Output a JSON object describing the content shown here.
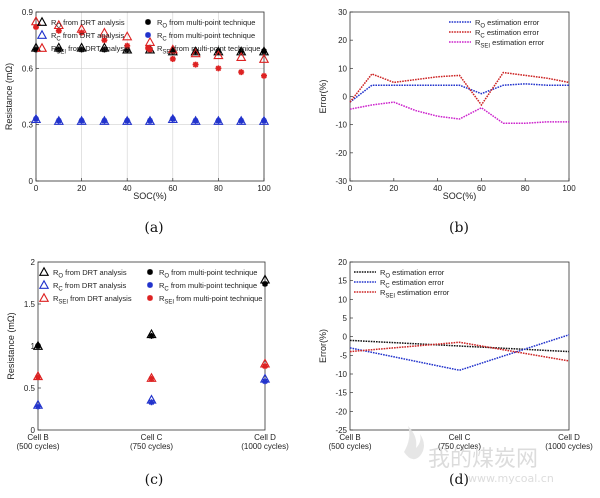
{
  "chart_data": [
    {
      "id": "a",
      "type": "scatter",
      "caption": "(a)",
      "xlabel": "SOC(%)",
      "ylabel": "Resistance (mΩ)",
      "xlim": [
        0,
        100
      ],
      "ylim": [
        0,
        0.9
      ],
      "xticks": [
        0,
        20,
        40,
        60,
        80,
        100
      ],
      "yticks": [
        0,
        0.3,
        0.6,
        0.9
      ],
      "ytick_labels": [
        "0",
        "0.3",
        "0.6",
        "0.9"
      ],
      "grid": true,
      "legend": [
        {
          "label": "R_O from DRT analysis",
          "marker": "tri",
          "color": "#000000"
        },
        {
          "label": "R_O from multi-point technique",
          "marker": "star",
          "color": "#000000"
        },
        {
          "label": "R_C from DRT analysis",
          "marker": "tri",
          "color": "#2233cc"
        },
        {
          "label": "R_C from multi-point technique",
          "marker": "star",
          "color": "#2233cc"
        },
        {
          "label": "R_SEI from DRT analysis",
          "marker": "tri",
          "color": "#dd2222"
        },
        {
          "label": "R_SEI from multi-point technique",
          "marker": "star",
          "color": "#dd2222"
        }
      ],
      "x": [
        0,
        10,
        20,
        30,
        40,
        50,
        60,
        70,
        80,
        90,
        100
      ],
      "series": [
        {
          "name": "R_O from DRT analysis",
          "marker": "tri",
          "color": "#000000",
          "values": [
            0.71,
            0.71,
            0.71,
            0.71,
            0.7,
            0.7,
            0.69,
            0.69,
            0.69,
            0.69,
            0.69
          ]
        },
        {
          "name": "R_O from multi-point technique",
          "marker": "star",
          "color": "#000000",
          "values": [
            0.7,
            0.7,
            0.7,
            0.7,
            0.7,
            0.7,
            0.69,
            0.69,
            0.69,
            0.69,
            0.69
          ]
        },
        {
          "name": "R_C from DRT analysis",
          "marker": "tri",
          "color": "#2233cc",
          "values": [
            0.33,
            0.32,
            0.32,
            0.32,
            0.32,
            0.32,
            0.33,
            0.32,
            0.32,
            0.32,
            0.32
          ]
        },
        {
          "name": "R_C from multi-point technique",
          "marker": "star",
          "color": "#2233cc",
          "values": [
            0.33,
            0.32,
            0.32,
            0.32,
            0.32,
            0.32,
            0.33,
            0.32,
            0.32,
            0.32,
            0.32
          ]
        },
        {
          "name": "R_SEI from DRT analysis",
          "marker": "tri",
          "color": "#dd2222",
          "values": [
            0.85,
            0.83,
            0.81,
            0.79,
            0.77,
            0.74,
            0.7,
            0.68,
            0.67,
            0.66,
            0.65
          ]
        },
        {
          "name": "R_SEI from multi-point technique",
          "marker": "star",
          "color": "#dd2222",
          "values": [
            0.82,
            0.8,
            0.79,
            0.75,
            0.72,
            0.7,
            0.65,
            0.62,
            0.6,
            0.58,
            0.56
          ]
        }
      ]
    },
    {
      "id": "b",
      "type": "line",
      "caption": "(b)",
      "xlabel": "SOC(%)",
      "ylabel": "Error(%)",
      "xlim": [
        0,
        100
      ],
      "ylim": [
        -30,
        30
      ],
      "xticks": [
        0,
        20,
        40,
        60,
        80,
        100
      ],
      "yticks": [
        -30,
        -20,
        -10,
        0,
        10,
        20,
        30
      ],
      "grid": false,
      "legend_placement": "top-right",
      "x": [
        0,
        10,
        20,
        30,
        40,
        50,
        60,
        70,
        80,
        90,
        100
      ],
      "series": [
        {
          "name": "R_O estimation error",
          "color": "#2233cc",
          "values": [
            -2,
            4,
            4,
            4,
            4,
            4,
            1,
            4,
            4.5,
            4,
            4
          ]
        },
        {
          "name": "R_C estimation error",
          "color": "#cc2222",
          "values": [
            -2,
            8,
            5,
            6,
            7,
            7.5,
            -3,
            8.5,
            7.5,
            6.5,
            5
          ]
        },
        {
          "name": "R_SEI estimation error",
          "color": "#cc22cc",
          "values": [
            -4.5,
            -3,
            -2,
            -5,
            -7,
            -8,
            -4,
            -9.5,
            -9.5,
            -9,
            -9
          ]
        }
      ]
    },
    {
      "id": "c",
      "type": "scatter",
      "caption": "(c)",
      "ylabel": "Resistance (mΩ)",
      "ylim": [
        0,
        2
      ],
      "yticks": [
        0,
        0.5,
        1,
        1.5,
        2
      ],
      "categories": [
        "Cell B\n(500 cycles)",
        "Cell C\n(750 cycles)",
        "Cell D\n(1000 cycles)"
      ],
      "grid": false,
      "legend": [
        {
          "label": "R_O from DRT analysis",
          "marker": "tri",
          "color": "#000000"
        },
        {
          "label": "R_O from multi-point technique",
          "marker": "star",
          "color": "#000000"
        },
        {
          "label": "R_C from DRT analysis",
          "marker": "tri",
          "color": "#2233cc"
        },
        {
          "label": "R_C from multi-point technique",
          "marker": "star",
          "color": "#2233cc"
        },
        {
          "label": "R_SEI from DRT analysis",
          "marker": "tri",
          "color": "#dd2222"
        },
        {
          "label": "R_SEI from multi-point technique",
          "marker": "star",
          "color": "#dd2222"
        }
      ],
      "series": [
        {
          "name": "R_O from DRT analysis",
          "marker": "tri",
          "color": "#000000",
          "values": [
            1.0,
            1.14,
            1.79
          ]
        },
        {
          "name": "R_O from multi-point technique",
          "marker": "star",
          "color": "#000000",
          "values": [
            1.0,
            1.12,
            1.74
          ]
        },
        {
          "name": "R_C from DRT analysis",
          "marker": "tri",
          "color": "#2233cc",
          "values": [
            0.3,
            0.36,
            0.61
          ]
        },
        {
          "name": "R_C from multi-point technique",
          "marker": "star",
          "color": "#2233cc",
          "values": [
            0.28,
            0.33,
            0.58
          ]
        },
        {
          "name": "R_SEI from DRT analysis",
          "marker": "tri",
          "color": "#dd2222",
          "values": [
            0.64,
            0.62,
            0.79
          ]
        },
        {
          "name": "R_SEI from multi-point technique",
          "marker": "star",
          "color": "#dd2222",
          "values": [
            0.63,
            0.61,
            0.76
          ]
        }
      ]
    },
    {
      "id": "d",
      "type": "line",
      "caption": "(d)",
      "ylabel": "Error(%)",
      "ylim": [
        -25,
        20
      ],
      "yticks": [
        -25,
        -20,
        -15,
        -10,
        -5,
        0,
        5,
        10,
        15,
        20
      ],
      "categories": [
        "Cell B\n(500 cycles)",
        "Cell C\n(750 cycles)",
        "Cell D\n(1000 cycles)"
      ],
      "grid": false,
      "legend_placement": "top-left",
      "series": [
        {
          "name": "R_O estimation error",
          "color": "#111111",
          "values": [
            -1,
            -2.5,
            -4
          ]
        },
        {
          "name": "R_C estimation error",
          "color": "#2233cc",
          "values": [
            -3,
            -9,
            0.5
          ]
        },
        {
          "name": "R_SEI estimation error",
          "color": "#cc2222",
          "values": [
            -4,
            -1.5,
            -6.5
          ]
        }
      ]
    }
  ],
  "watermark": {
    "text": "我的煤炭网",
    "url": "www.mycoal.cn"
  }
}
